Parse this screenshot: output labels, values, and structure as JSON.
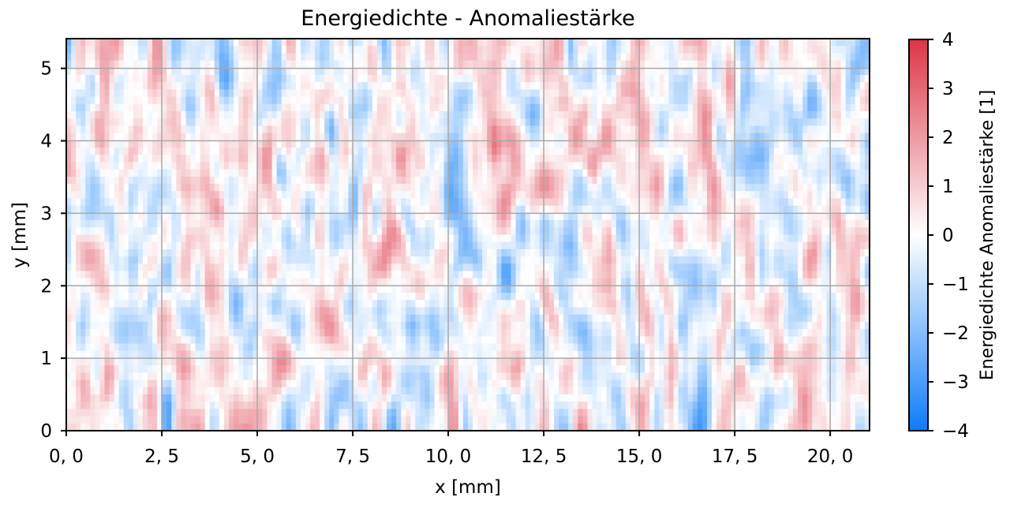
{
  "chart_data": {
    "type": "heatmap",
    "title": "Energiedichte - Anomaliestärke",
    "xlabel": "x [mm]",
    "ylabel": "y [mm]",
    "xlim": [
      0,
      21.03
    ],
    "ylim": [
      0,
      5.41
    ],
    "xticks": [
      0,
      2.5,
      5,
      7.5,
      10,
      12.5,
      15,
      17.5,
      20
    ],
    "xtick_labels": [
      "0, 0",
      "2, 5",
      "5, 0",
      "7, 5",
      "10, 0",
      "12, 5",
      "15, 0",
      "17, 5",
      "20, 0"
    ],
    "yticks": [
      0,
      1,
      2,
      3,
      4,
      5
    ],
    "ytick_labels": [
      "0",
      "1",
      "2",
      "3",
      "4",
      "5"
    ],
    "grid": true,
    "colorbar": {
      "label": "Energiedichte Anomaliestärke [1]",
      "range": [
        -4,
        4
      ],
      "ticks": [
        4,
        3,
        2,
        1,
        0,
        -1,
        -2,
        -3,
        -4
      ],
      "tick_labels": [
        "4",
        "3",
        "2",
        "1",
        "0",
        "−1",
        "−2",
        "−3",
        "−4"
      ],
      "colors": {
        "low": "#0d7cf8",
        "mid": "#ffffff",
        "high": "#dc3545"
      }
    }
  }
}
